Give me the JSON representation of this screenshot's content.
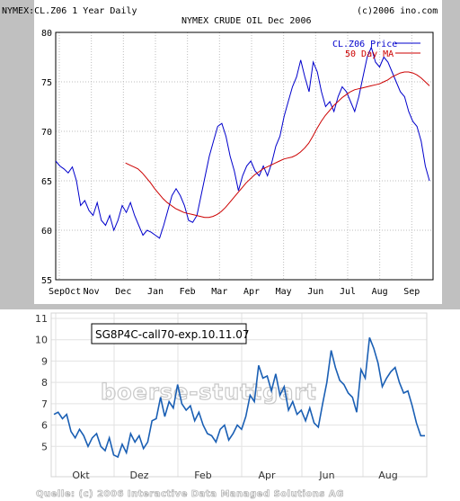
{
  "chart_data": [
    {
      "type": "line",
      "header_left": "NYMEX:CL.Z06 1 Year Daily",
      "header_right": "(c)2006 ino.com",
      "title": "NYMEX CRUDE OIL Dec 2006",
      "x_ticks": [
        "SepOct",
        "Nov",
        "Dec",
        "Jan",
        "Feb",
        "Mar",
        "Apr",
        "May",
        "Jun",
        "Jul",
        "Aug",
        "Sep"
      ],
      "y_ticks": [
        55,
        60,
        65,
        70,
        75,
        80
      ],
      "ylim": [
        55,
        80
      ],
      "grid": true,
      "legend_position": "top-right",
      "series": [
        {
          "name": "CL.Z06 Price",
          "color": "#0000cc",
          "values": [
            67.0,
            66.5,
            66.2,
            65.8,
            66.4,
            65.0,
            62.5,
            63.0,
            62.0,
            61.5,
            62.8,
            61.0,
            60.5,
            61.5,
            60.0,
            61.0,
            62.5,
            61.8,
            62.8,
            61.5,
            60.5,
            59.5,
            60.0,
            59.8,
            59.5,
            59.2,
            60.5,
            62.0,
            63.5,
            64.2,
            63.5,
            62.5,
            61.0,
            60.8,
            61.5,
            63.5,
            65.5,
            67.5,
            69.0,
            70.5,
            70.8,
            69.5,
            67.5,
            66.0,
            64.0,
            65.5,
            66.5,
            67.0,
            66.0,
            65.5,
            66.5,
            65.5,
            66.8,
            68.5,
            69.5,
            71.5,
            73.0,
            74.5,
            75.5,
            77.2,
            75.5,
            74.0,
            77.0,
            76.0,
            74.0,
            72.5,
            73.0,
            72.0,
            73.5,
            74.5,
            74.0,
            73.0,
            72.0,
            73.5,
            75.5,
            77.5,
            78.5,
            77.0,
            76.5,
            77.5,
            77.0,
            76.0,
            75.0,
            74.0,
            73.5,
            72.0,
            71.0,
            70.5,
            69.0,
            66.5,
            65.0
          ]
        },
        {
          "name": "50 Day MA",
          "color": "#cc0000",
          "values": [
            66.8,
            66.6,
            66.4,
            66.2,
            65.8,
            65.3,
            64.8,
            64.2,
            63.7,
            63.2,
            62.8,
            62.5,
            62.2,
            62.0,
            61.8,
            61.7,
            61.6,
            61.5,
            61.4,
            61.3,
            61.3,
            61.4,
            61.6,
            61.9,
            62.3,
            62.8,
            63.3,
            63.8,
            64.3,
            64.8,
            65.2,
            65.6,
            65.9,
            66.2,
            66.4,
            66.6,
            66.8,
            67.0,
            67.2,
            67.3,
            67.4,
            67.6,
            67.9,
            68.3,
            68.8,
            69.5,
            70.3,
            71.0,
            71.6,
            72.1,
            72.6,
            73.0,
            73.4,
            73.7,
            74.0,
            74.2,
            74.3,
            74.4,
            74.5,
            74.6,
            74.7,
            74.8,
            75.0,
            75.2,
            75.5,
            75.7,
            75.9,
            76.0,
            76.0,
            75.9,
            75.7,
            75.4,
            75.0,
            74.6
          ]
        }
      ]
    },
    {
      "type": "line",
      "title": "SG8P4C-call70-exp.10.11.07",
      "watermark": "boerse-stuttgart",
      "footer": "Quelle: (c) 2006 Interactive Data Managed Solutions AG",
      "x_ticks": [
        "Okt",
        "Dez",
        "Feb",
        "Apr",
        "Jun",
        "Aug"
      ],
      "y_ticks": [
        5,
        6,
        7,
        8,
        9,
        10,
        11
      ],
      "ylim": [
        4,
        11
      ],
      "grid": true,
      "series": [
        {
          "name": "",
          "color": "#1a5fb4",
          "values": [
            6.5,
            6.6,
            6.3,
            6.5,
            5.7,
            5.4,
            5.8,
            5.5,
            5.0,
            5.4,
            5.6,
            5.0,
            4.8,
            5.4,
            4.6,
            4.5,
            5.1,
            4.7,
            5.6,
            5.2,
            5.5,
            4.9,
            5.2,
            6.2,
            6.3,
            7.3,
            6.4,
            7.1,
            6.8,
            7.9,
            7.0,
            6.7,
            6.9,
            6.2,
            6.6,
            6.0,
            5.6,
            5.5,
            5.2,
            5.8,
            6.0,
            5.3,
            5.6,
            6.0,
            5.8,
            6.4,
            7.4,
            7.1,
            8.8,
            8.2,
            8.3,
            7.6,
            8.4,
            7.4,
            7.8,
            6.7,
            7.1,
            6.5,
            6.7,
            6.2,
            6.8,
            6.1,
            5.9,
            7.0,
            8.0,
            9.5,
            8.7,
            8.1,
            7.9,
            7.5,
            7.3,
            6.6,
            8.6,
            8.2,
            10.1,
            9.6,
            8.9,
            7.8,
            8.2,
            8.5,
            8.7,
            8.0,
            7.5,
            7.6,
            6.9,
            6.1,
            5.5,
            5.5
          ]
        }
      ]
    }
  ]
}
